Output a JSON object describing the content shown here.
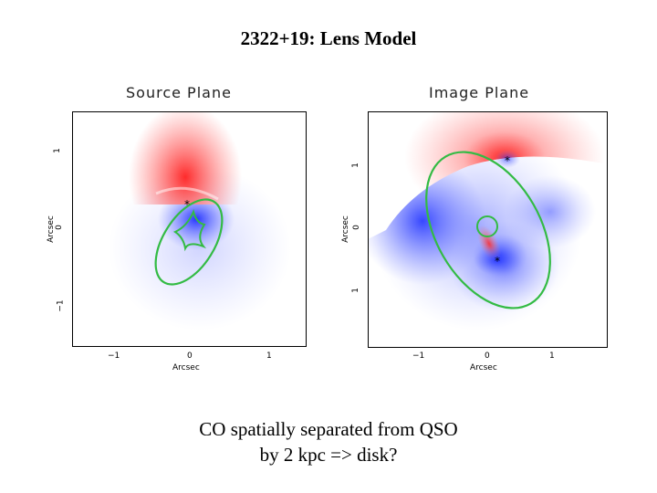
{
  "title": "2322+19: Lens Model",
  "panels": {
    "source": {
      "title": "Source Plane",
      "xlabel": "Arcsec",
      "ylabel": "Arcsec",
      "xticks": [
        "−1",
        "0",
        "1"
      ],
      "yticks": [
        "1",
        "0",
        "−1"
      ]
    },
    "image": {
      "title": "Image Plane",
      "xlabel": "Arcsec",
      "ylabel": "Arcsec",
      "xticks": [
        "−1",
        "0",
        "1"
      ],
      "yticks": [
        "1",
        "0",
        "1"
      ]
    }
  },
  "caption": {
    "line1": "CO spatially separated from QSO",
    "line2": "by 2 kpc => disk?"
  },
  "colors": {
    "red": "#ff3030",
    "blue": "#2f3fff",
    "curve": "#33bb44"
  }
}
